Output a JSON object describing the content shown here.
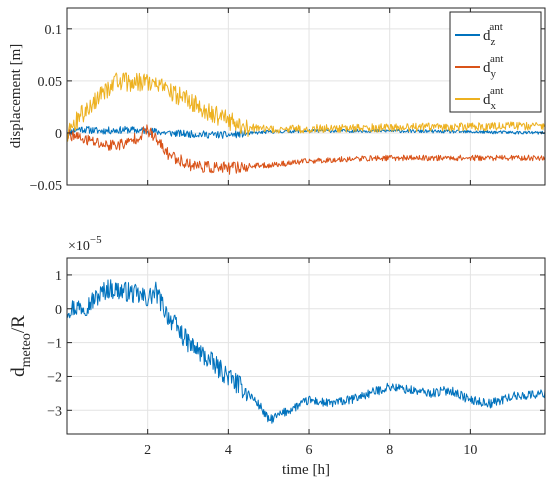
{
  "chart_data": [
    {
      "type": "line",
      "xlabel": "",
      "ylabel": "displacement [m]",
      "xlim": [
        0,
        11.85
      ],
      "ylim": [
        -0.05,
        0.12
      ],
      "yticks": [
        -0.05,
        0,
        0.05,
        0.1
      ],
      "ytick_labels": [
        "−0.05",
        "0",
        "0.05",
        "0.1"
      ],
      "xticks": [
        2,
        4,
        6,
        8,
        10
      ],
      "xtick_labels": [
        "",
        "",
        "",
        "",
        ""
      ],
      "grid": true,
      "legend_position": "top-right",
      "series": [
        {
          "name_base": "d",
          "name_sub": "z",
          "name_sup": "ant",
          "color": "#0072BD",
          "noise": 0.0035,
          "x": [
            0,
            0.3,
            0.8,
            1.5,
            2.0,
            2.5,
            3.0,
            4.0,
            5.0,
            6.0,
            8.0,
            10.0,
            11.85
          ],
          "y": [
            0.0,
            0.004,
            0.002,
            0.003,
            0.002,
            0.0,
            -0.001,
            -0.002,
            0.001,
            0.002,
            0.002,
            0.001,
            0.0
          ]
        },
        {
          "name_base": "d",
          "name_sub": "y",
          "name_sup": "ant",
          "color": "#D95319",
          "noise": 0.006,
          "x": [
            0,
            0.3,
            1.0,
            1.5,
            2.0,
            2.5,
            3.0,
            3.5,
            4.0,
            4.5,
            5.0,
            6.0,
            7.0,
            8.0,
            9.0,
            10.0,
            11.85
          ],
          "y": [
            0.0,
            -0.005,
            -0.012,
            -0.01,
            0.003,
            -0.02,
            -0.03,
            -0.033,
            -0.034,
            -0.032,
            -0.031,
            -0.027,
            -0.025,
            -0.024,
            -0.024,
            -0.024,
            -0.024
          ]
        },
        {
          "name_base": "d",
          "name_sub": "x",
          "name_sup": "ant",
          "color": "#EDB120",
          "noise": 0.009,
          "x": [
            0,
            0.3,
            0.8,
            1.2,
            1.6,
            2.0,
            2.5,
            3.0,
            3.5,
            4.0,
            4.5,
            5.0,
            6.0,
            8.0,
            10.0,
            11.85
          ],
          "y": [
            0.0,
            0.015,
            0.035,
            0.05,
            0.048,
            0.05,
            0.04,
            0.032,
            0.02,
            0.012,
            0.005,
            0.003,
            0.004,
            0.005,
            0.006,
            0.007
          ]
        }
      ]
    },
    {
      "type": "line",
      "xlabel": "time [h]",
      "ylabel_base": "d",
      "ylabel_sub": "meteo",
      "ylabel_tail": "/R",
      "exponent_label_base": "×10",
      "exponent_label_sup": "−5",
      "xlim": [
        0,
        11.85
      ],
      "ylim": [
        -3.7,
        1.5
      ],
      "yticks": [
        -3,
        -2,
        -1,
        0,
        1
      ],
      "ytick_labels": [
        "−3",
        "−2",
        "−1",
        "0",
        "1"
      ],
      "xticks": [
        2,
        4,
        6,
        8,
        10
      ],
      "xtick_labels": [
        "2",
        "4",
        "6",
        "8",
        "10"
      ],
      "grid": true,
      "series": [
        {
          "color": "#0072BD",
          "noise": 0.3,
          "x": [
            0,
            0.5,
            1.0,
            1.5,
            2.0,
            2.2,
            2.5,
            3.0,
            3.5,
            4.0,
            4.5,
            4.8,
            5.0,
            5.5,
            6.0,
            6.5,
            7.0,
            8.0,
            8.5,
            9.0,
            9.5,
            10.0,
            10.5,
            11.0,
            11.85
          ],
          "y": [
            0.0,
            0.1,
            0.6,
            0.5,
            0.3,
            0.5,
            -0.2,
            -1.0,
            -1.5,
            -2.0,
            -2.5,
            -2.9,
            -3.3,
            -3.0,
            -2.7,
            -2.8,
            -2.7,
            -2.3,
            -2.4,
            -2.5,
            -2.4,
            -2.7,
            -2.8,
            -2.6,
            -2.5
          ]
        }
      ]
    }
  ]
}
